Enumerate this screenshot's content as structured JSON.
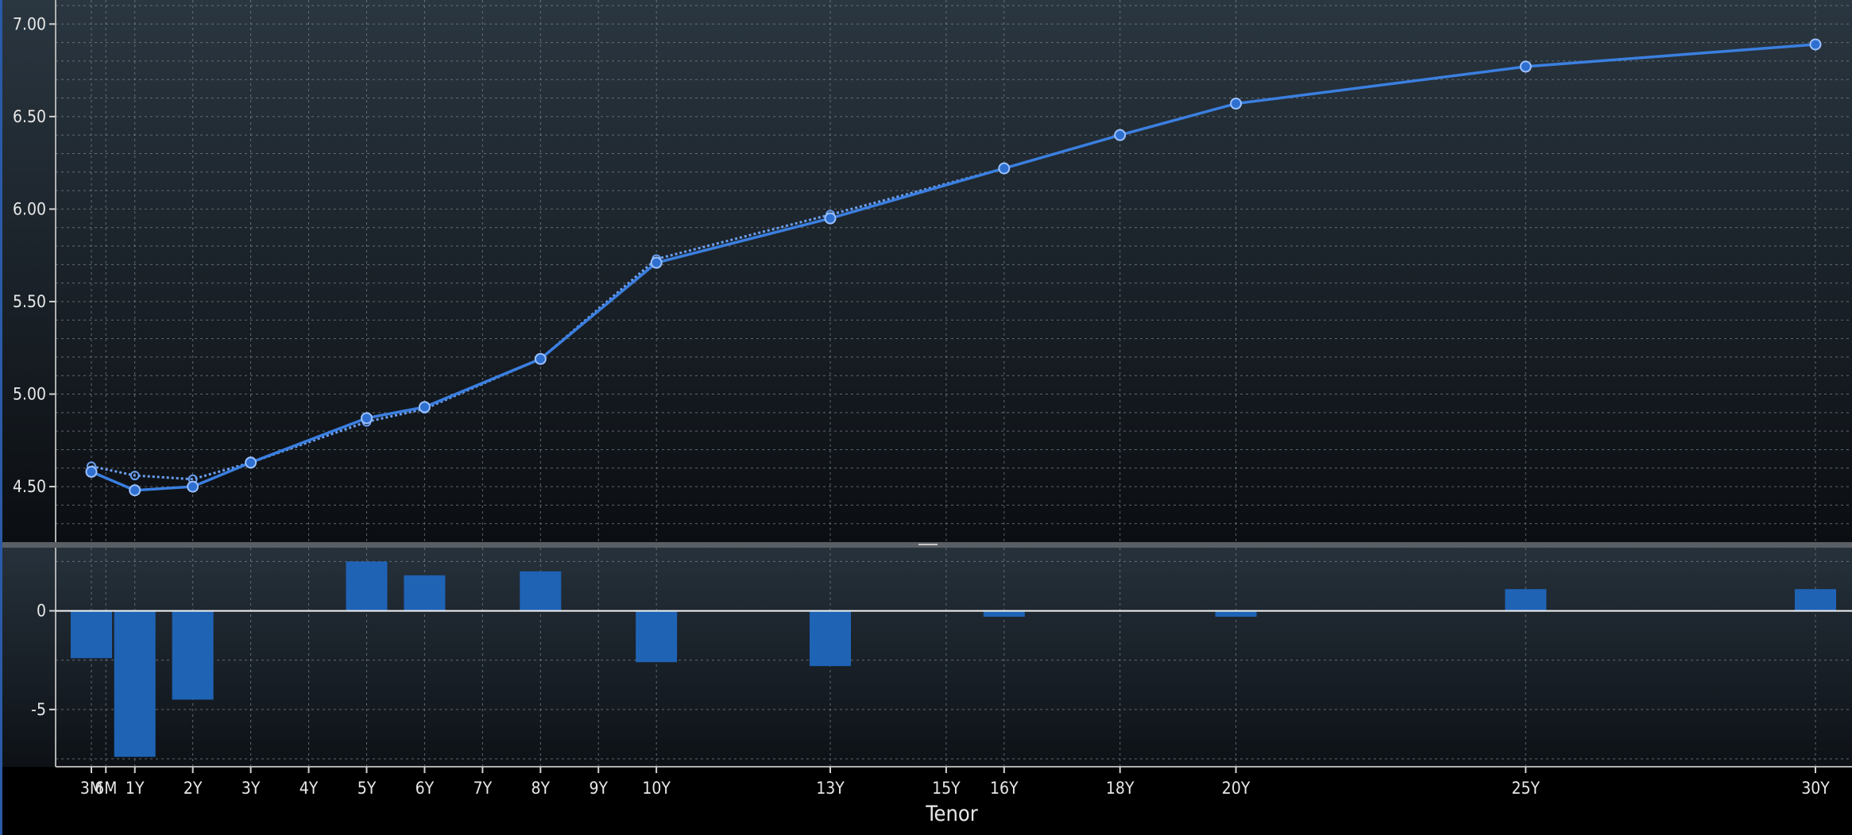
{
  "chart_data": [
    {
      "type": "line",
      "title": "",
      "xlabel": "Tenor",
      "ylabel": "",
      "x_categories": [
        "3M",
        "6M",
        "1Y",
        "2Y",
        "3Y",
        "4Y",
        "5Y",
        "6Y",
        "7Y",
        "8Y",
        "9Y",
        "10Y",
        "13Y",
        "15Y",
        "16Y",
        "18Y",
        "20Y",
        "25Y",
        "30Y"
      ],
      "x_positions": [
        0.25,
        0.5,
        1,
        2,
        3,
        4,
        5,
        6,
        7,
        8,
        9,
        10,
        13,
        15,
        16,
        18,
        20,
        25,
        30
      ],
      "yticks": [
        4.5,
        5.0,
        5.5,
        6.0,
        6.5,
        7.0
      ],
      "ytick_labels": [
        "4.50",
        "5.00",
        "5.50",
        "6.00",
        "6.50",
        "7.00"
      ],
      "ylim": [
        4.2,
        7.13
      ],
      "grid": true,
      "series": [
        {
          "style": "solid",
          "color": "#3b7fe0",
          "x": [
            0.25,
            1,
            2,
            3,
            5,
            6,
            8,
            10,
            13,
            16,
            18,
            20,
            25,
            30
          ],
          "y": [
            4.58,
            4.48,
            4.5,
            4.63,
            4.87,
            4.93,
            5.19,
            5.71,
            5.95,
            6.22,
            6.4,
            6.57,
            6.77,
            6.89
          ]
        },
        {
          "style": "dotted",
          "color": "#6a9ff0",
          "x": [
            0.25,
            1,
            2,
            3,
            5,
            6,
            8,
            10,
            13,
            16,
            18,
            20,
            25,
            30
          ],
          "y": [
            4.61,
            4.56,
            4.54,
            4.63,
            4.85,
            4.92,
            5.19,
            5.73,
            5.97,
            6.22,
            6.4,
            6.57,
            6.77,
            6.89
          ]
        }
      ]
    },
    {
      "type": "bar",
      "title": "",
      "xlabel": "Tenor",
      "ylabel": "",
      "yticks": [
        0,
        -5
      ],
      "ytick_labels": [
        "0",
        "-5"
      ],
      "ylim": [
        -7.9,
        3.2
      ],
      "color": "#1f63b5",
      "x": [
        0.25,
        1,
        2,
        3,
        5,
        6,
        8,
        10,
        13,
        16,
        18,
        20,
        25,
        30
      ],
      "values": [
        -2.4,
        -7.4,
        -4.5,
        0,
        2.5,
        1.8,
        2.0,
        -2.6,
        -2.8,
        -0.3,
        0,
        -0.3,
        1.1,
        1.1
      ]
    }
  ]
}
